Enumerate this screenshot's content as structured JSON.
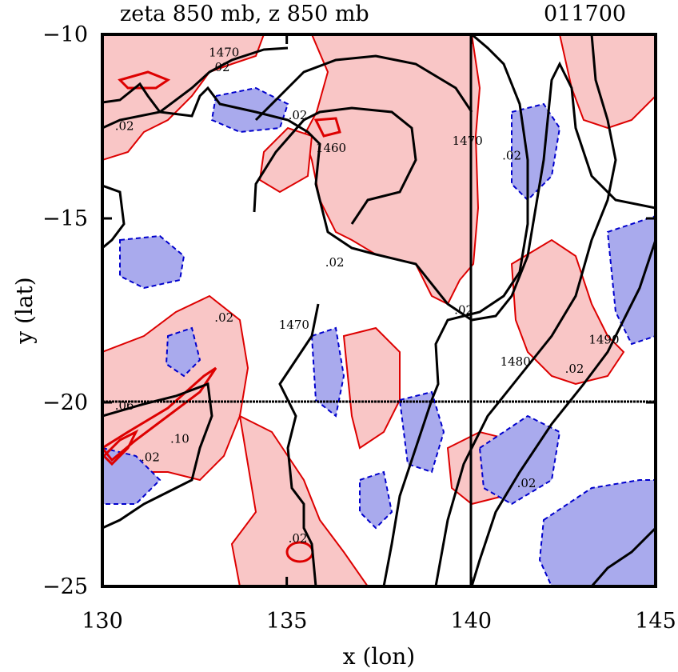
{
  "chart_data": {
    "type": "contour",
    "title": "zeta 850 mb, z 850 mb",
    "time_label": "011700",
    "xlabel": "x (lon)",
    "ylabel": "y (lat)",
    "xlim": [
      130,
      145
    ],
    "ylim": [
      -25,
      -10
    ],
    "xticks": [
      130,
      135,
      140,
      145
    ],
    "yticks": [
      -10,
      -15,
      -20,
      -25
    ],
    "grid_lines": {
      "x": [
        140
      ],
      "y": [
        -20
      ]
    },
    "colors": {
      "positive_fill": "#f9c6c6",
      "positive_line": "#dd0000",
      "negative_fill": "#a9aaed",
      "negative_line": "#0000cc",
      "height_line": "#000000"
    },
    "contour_labels": [
      {
        "text": "1470",
        "x": 133.3,
        "y": -10.6
      },
      {
        "text": ".02",
        "x": 133.2,
        "y": -11.0
      },
      {
        "text": ".02",
        "x": 130.6,
        "y": -12.6
      },
      {
        "text": ".02",
        "x": 135.3,
        "y": -12.3
      },
      {
        "text": "1460",
        "x": 136.2,
        "y": -13.2
      },
      {
        "text": "1470",
        "x": 139.9,
        "y": -13.0
      },
      {
        "text": ".02",
        "x": 141.1,
        "y": -13.4
      },
      {
        "text": ".02",
        "x": 136.3,
        "y": -16.3
      },
      {
        "text": ".02",
        "x": 133.3,
        "y": -17.8
      },
      {
        "text": "1470",
        "x": 135.2,
        "y": -18.0
      },
      {
        "text": ".02",
        "x": 139.8,
        "y": -17.6
      },
      {
        "text": "1480",
        "x": 141.2,
        "y": -19.0
      },
      {
        "text": "1490",
        "x": 143.6,
        "y": -18.4
      },
      {
        "text": ".02",
        "x": 142.8,
        "y": -19.2
      },
      {
        "text": ".06",
        "x": 130.6,
        "y": -20.2
      },
      {
        "text": ".10",
        "x": 132.1,
        "y": -21.1
      },
      {
        "text": ".02",
        "x": 131.3,
        "y": -21.6
      },
      {
        "text": ".02",
        "x": 141.5,
        "y": -22.3
      },
      {
        "text": ".02",
        "x": 135.3,
        "y": -23.8
      }
    ]
  }
}
